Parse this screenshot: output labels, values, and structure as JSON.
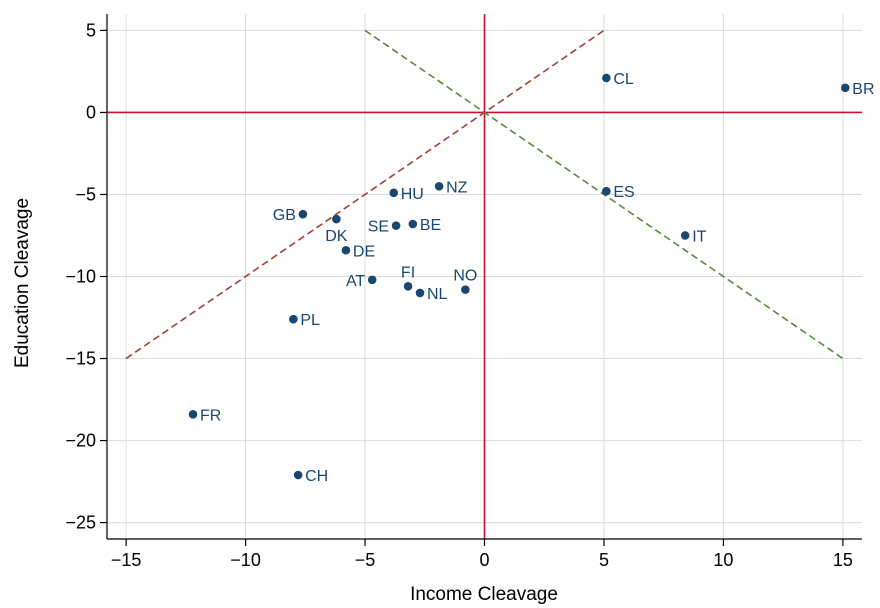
{
  "chart_data": {
    "type": "scatter",
    "title": "",
    "xlabel": "Income Cleavage",
    "ylabel": "Education Cleavage",
    "xlim": [
      -15.8,
      15.8
    ],
    "ylim": [
      -26,
      6
    ],
    "xticks": [
      -15,
      -10,
      -5,
      0,
      5,
      10,
      15
    ],
    "yticks": [
      5,
      0,
      -5,
      -10,
      -15,
      -20,
      -25
    ],
    "xtick_labels": [
      "−15",
      "−10",
      "−5",
      "0",
      "5",
      "10",
      "15"
    ],
    "ytick_labels": [
      "5",
      "0",
      "−5",
      "−10",
      "−15",
      "−20",
      "−25"
    ],
    "grid": true,
    "marker_color": "#1a476f",
    "points": [
      {
        "label": "BR",
        "x": 15.1,
        "y": 1.5,
        "pos": "right"
      },
      {
        "label": "CL",
        "x": 5.1,
        "y": 2.1,
        "pos": "right"
      },
      {
        "label": "ES",
        "x": 5.1,
        "y": -4.8,
        "pos": "right"
      },
      {
        "label": "IT",
        "x": 8.4,
        "y": -7.5,
        "pos": "right"
      },
      {
        "label": "NZ",
        "x": -1.9,
        "y": -4.5,
        "pos": "right"
      },
      {
        "label": "HU",
        "x": -3.8,
        "y": -4.9,
        "pos": "right"
      },
      {
        "label": "BE",
        "x": -3.0,
        "y": -6.8,
        "pos": "right"
      },
      {
        "label": "SE",
        "x": -3.7,
        "y": -6.9,
        "pos": "left"
      },
      {
        "label": "GB",
        "x": -7.6,
        "y": -6.2,
        "pos": "left"
      },
      {
        "label": "DK",
        "x": -6.2,
        "y": -6.5,
        "pos": "below"
      },
      {
        "label": "DE",
        "x": -5.8,
        "y": -8.4,
        "pos": "right"
      },
      {
        "label": "AT",
        "x": -4.7,
        "y": -10.2,
        "pos": "left"
      },
      {
        "label": "FI",
        "x": -3.2,
        "y": -10.6,
        "pos": "above"
      },
      {
        "label": "NL",
        "x": -2.7,
        "y": -11.0,
        "pos": "right"
      },
      {
        "label": "NO",
        "x": -0.8,
        "y": -10.8,
        "pos": "above"
      },
      {
        "label": "PL",
        "x": -8.0,
        "y": -12.6,
        "pos": "right"
      },
      {
        "label": "FR",
        "x": -12.2,
        "y": -18.4,
        "pos": "right"
      },
      {
        "label": "CH",
        "x": -7.8,
        "y": -22.1,
        "pos": "right"
      }
    ],
    "reference_lines": [
      {
        "name": "x=0",
        "x": [
          0,
          0
        ],
        "y": [
          -26,
          6
        ],
        "color": "#c8102e",
        "style": "solid"
      },
      {
        "name": "y=0",
        "x": [
          -15.8,
          15.8
        ],
        "y": [
          0,
          0
        ],
        "color": "#c8102e",
        "style": "solid"
      },
      {
        "name": "y=x",
        "x": [
          -15,
          5
        ],
        "y": [
          -15,
          5
        ],
        "color": "#a0413c",
        "style": "dashed"
      },
      {
        "name": "y=-x",
        "x": [
          -5,
          15
        ],
        "y": [
          5,
          -15
        ],
        "color": "#5a8a3a",
        "style": "dashed"
      }
    ]
  }
}
